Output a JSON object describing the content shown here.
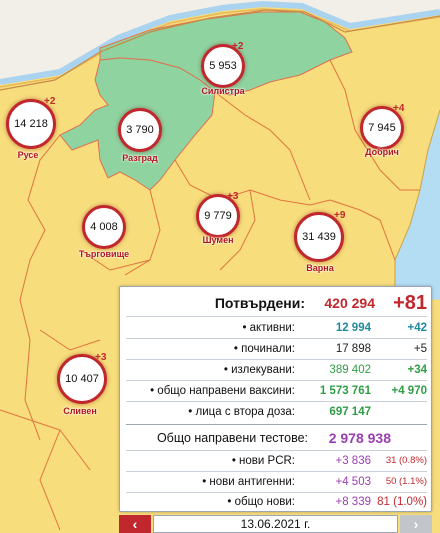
{
  "regions": [
    {
      "id": "silistra",
      "name": "Силистра",
      "count": "5 953",
      "delta": "+2"
    },
    {
      "id": "ruse",
      "name": "Русе",
      "count": "14 218",
      "delta": "+2"
    },
    {
      "id": "razgrad",
      "name": "Разград",
      "count": "3 790",
      "delta": ""
    },
    {
      "id": "dobrich",
      "name": "Добрич",
      "count": "7 945",
      "delta": "+4"
    },
    {
      "id": "shumen",
      "name": "Шумен",
      "count": "9 779",
      "delta": "+3"
    },
    {
      "id": "targovishte",
      "name": "Търговище",
      "count": "4 008",
      "delta": ""
    },
    {
      "id": "varna",
      "name": "Варна",
      "count": "31 439",
      "delta": "+9"
    },
    {
      "id": "sliven",
      "name": "Сливен",
      "count": "10 407",
      "delta": "+3"
    }
  ],
  "stats": {
    "confirmed": {
      "label": "Потвърдени:",
      "value": "420 294",
      "delta": "+81"
    },
    "active": {
      "label": "• активни:",
      "value": "12 994",
      "delta": "+42"
    },
    "deceased": {
      "label": "• починали:",
      "value": "17 898",
      "delta": "+5"
    },
    "recovered": {
      "label": "• излекувани:",
      "value": "389 402",
      "delta": "+34"
    },
    "vaccines": {
      "label": "• общо направени ваксини:",
      "value": "1 573 761",
      "delta": "+4 970"
    },
    "second_dose": {
      "label": "• лица с втора доза:",
      "value": "697 147"
    },
    "tests": {
      "label": "Общо направени тестове:",
      "value": "2 978 938"
    },
    "pcr": {
      "label": "• нови PCR:",
      "value": "+3 836",
      "delta": "31 (0.8%)"
    },
    "antigen": {
      "label": "• нови антигенни:",
      "value": "+4 503",
      "delta": "50 (1.1%)"
    },
    "total_new": {
      "label": "• общо нови:",
      "value": "+8 339",
      "delta": "81 (1.0%)"
    }
  },
  "nav": {
    "prev": "‹",
    "date": "13.06.2021 г.",
    "next": "›"
  },
  "colors": {
    "map_yellow": "#f7dd7c",
    "map_green": "#8fd3a0",
    "danube_blue": "#a9d3ef",
    "alert_red": "#c0282d",
    "teal": "#1f8a9a",
    "green": "#2f9d45",
    "purple": "#9a3fb0"
  }
}
